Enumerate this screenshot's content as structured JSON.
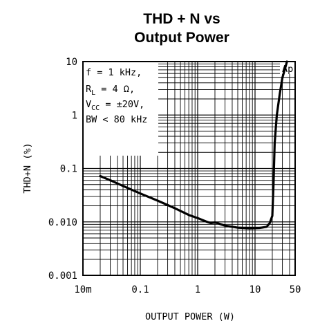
{
  "chart_data": {
    "type": "line",
    "title_line1": "THD + N vs",
    "title_line2": "Output Power",
    "xlabel": "OUTPUT POWER (W)",
    "ylabel": "THD+N (%)",
    "x_scale": "log",
    "y_scale": "log",
    "xlim": [
      0.01,
      50
    ],
    "ylim": [
      0.001,
      10
    ],
    "grid": true,
    "x_ticks": [
      {
        "value": 0.01,
        "label": "10m"
      },
      {
        "value": 0.1,
        "label": "0.1"
      },
      {
        "value": 1,
        "label": "1"
      },
      {
        "value": 10,
        "label": "10"
      },
      {
        "value": 50,
        "label": "50"
      }
    ],
    "y_ticks": [
      {
        "value": 10,
        "label": "10"
      },
      {
        "value": 1,
        "label": "1"
      },
      {
        "value": 0.1,
        "label": "0.1"
      },
      {
        "value": 0.01,
        "label": "0.010"
      },
      {
        "value": 0.001,
        "label": "0.001"
      }
    ],
    "conditions": [
      "f = 1 kHz,",
      "R_L = 4 Ω,",
      "V_CC = ±20V,",
      "BW < 80 kHz"
    ],
    "watermark": "Ap",
    "series": [
      {
        "x": [
          0.02,
          0.03,
          0.05,
          0.1,
          0.2,
          0.4,
          0.7,
          1.0,
          1.4,
          1.7,
          2.0,
          3.0,
          5.0,
          8.0,
          12,
          16,
          18,
          20,
          21,
          22,
          24,
          27,
          30,
          34,
          36
        ],
        "y": [
          0.072,
          0.06,
          0.047,
          0.034,
          0.025,
          0.018,
          0.0135,
          0.0118,
          0.0102,
          0.0095,
          0.0098,
          0.0085,
          0.0078,
          0.0076,
          0.0077,
          0.0081,
          0.0095,
          0.013,
          0.05,
          0.3,
          1.0,
          2.5,
          5.0,
          8.0,
          10.0
        ]
      }
    ]
  }
}
